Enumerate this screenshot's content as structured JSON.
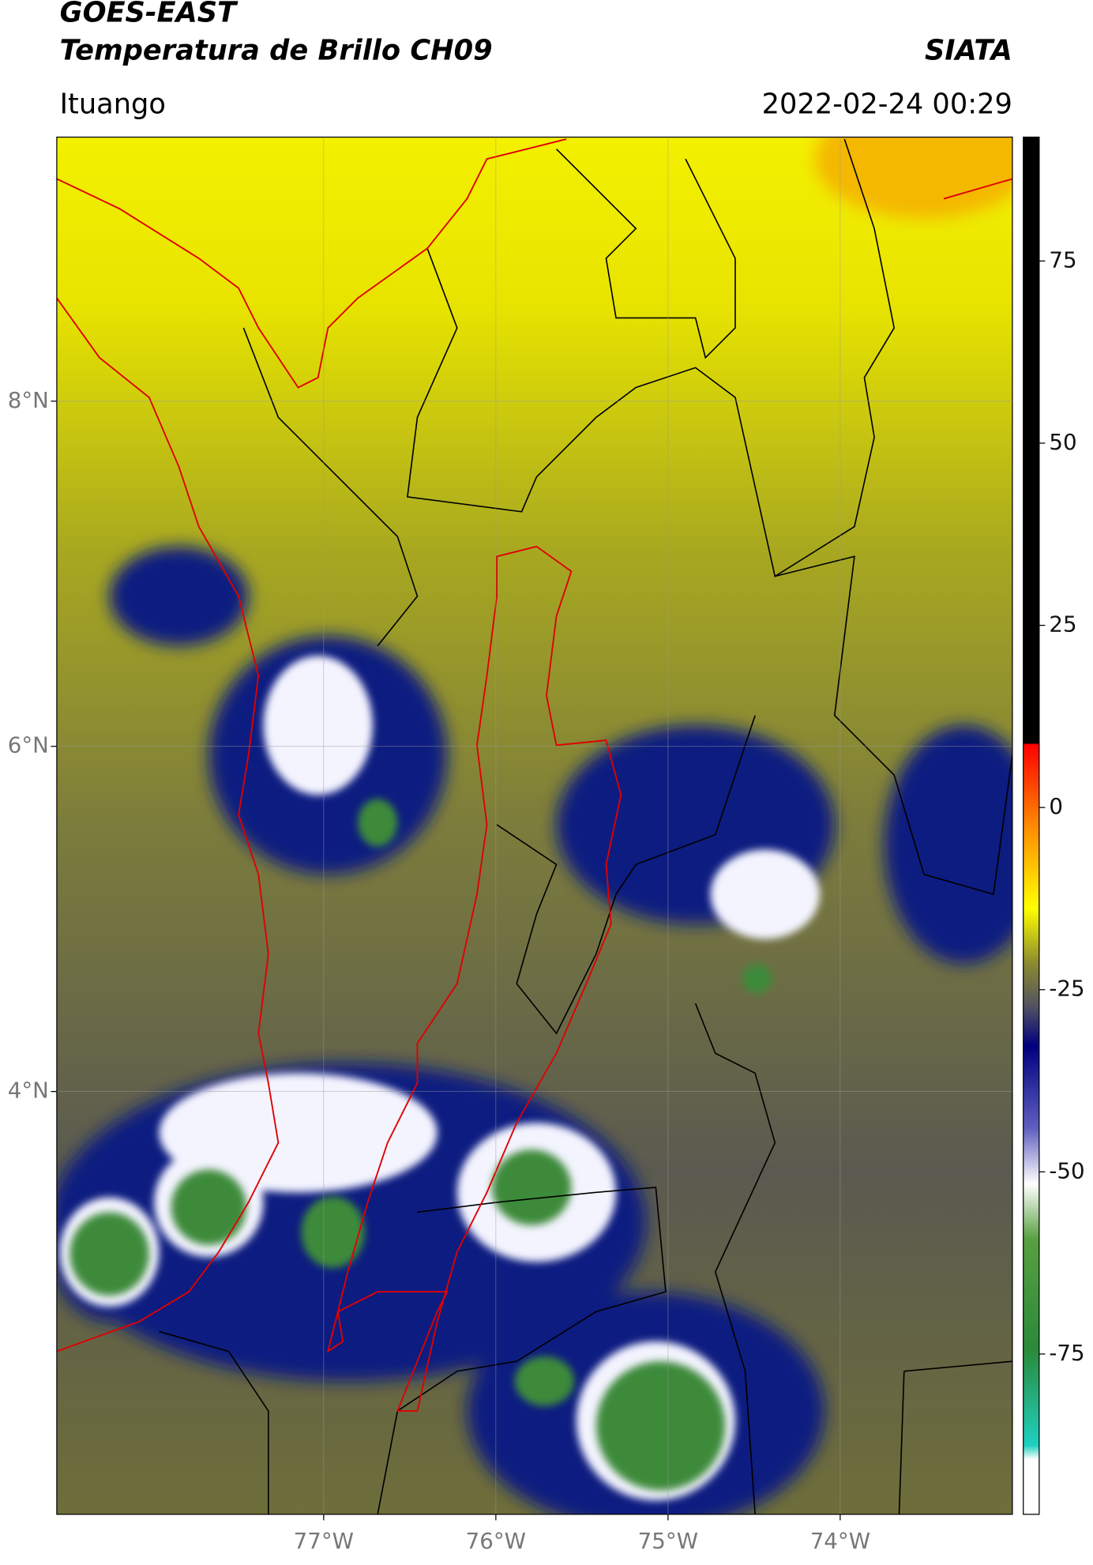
{
  "header": {
    "title": "GOES-EAST",
    "subtitle": "Temperatura de Brillo CH09",
    "source": "SIATA",
    "location": "Ituango",
    "datetime": "2022-02-24 00:29"
  },
  "map": {
    "latlim": [
      1.55,
      9.53
    ],
    "lonlim": [
      -78.55,
      -73.0
    ],
    "lat_ticks": [
      {
        "value": 8,
        "label": "8°N"
      },
      {
        "value": 6,
        "label": "6°N"
      },
      {
        "value": 4,
        "label": "4°N"
      }
    ],
    "lon_ticks": [
      {
        "value": -77,
        "label": "77°W"
      },
      {
        "value": -76,
        "label": "76°W"
      },
      {
        "value": -75,
        "label": "75°W"
      },
      {
        "value": -74,
        "label": "74°W"
      }
    ]
  },
  "colorbar": {
    "lim": [
      -97,
      92
    ],
    "ticks": [
      75,
      50,
      25,
      0,
      -25,
      -50,
      -75
    ]
  }
}
